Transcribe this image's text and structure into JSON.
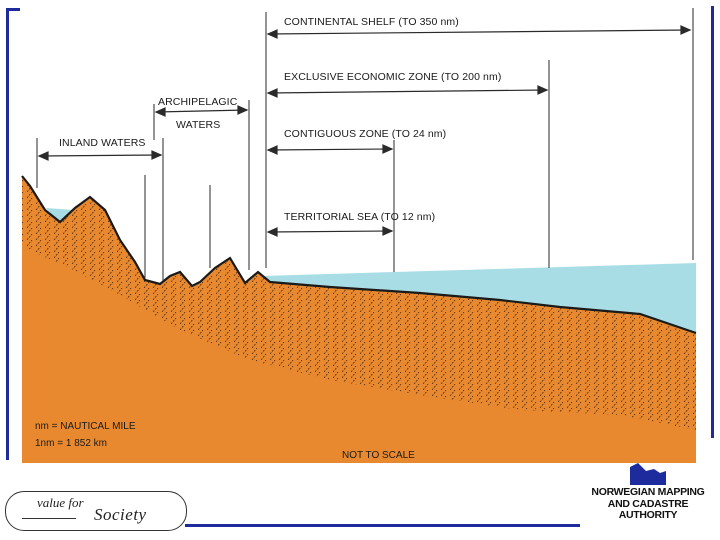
{
  "diagram": {
    "labels": {
      "continental_shelf": "CONTINENTAL SHELF (TO 350 nm)",
      "eez": "EXCLUSIVE ECONOMIC ZONE (TO 200 nm)",
      "archipelagic_line1": "ARCHIPELAGIC",
      "archipelagic_line2": "WATERS",
      "inland_waters": "INLAND WATERS",
      "contiguous_zone": "CONTIGUOUS  ZONE (TO 24 nm)",
      "territorial_sea": "TERRITORIAL SEA (TO 12 nm)"
    },
    "legend": {
      "line1": "nm = NAUTICAL MILE",
      "line2": "1nm = 1 852 km"
    },
    "scale_note": "NOT TO SCALE",
    "colors": {
      "land": "#e8892f",
      "land_deep": "#e48a35",
      "sea": "#a8dde6",
      "hatch": "#4a2a10",
      "frame": "#1d2b9c"
    }
  },
  "branding": {
    "slogan_value_for": "value for",
    "slogan_society": "Society",
    "org_name_line1": "NORWEGIAN MAPPING",
    "org_name_line2": "AND CADASTRE",
    "org_name_line3": "AUTHORITY",
    "org_logo_icon": "norway-map-icon"
  }
}
